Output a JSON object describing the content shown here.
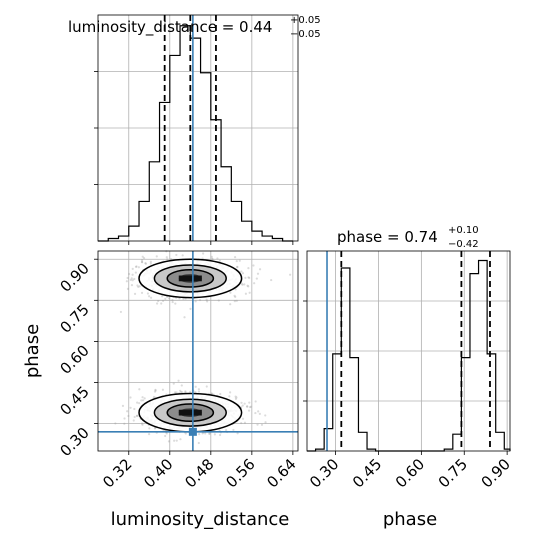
{
  "chart_data": [
    {
      "type": "histogram",
      "panel": "luminosity_distance marginal",
      "title_main": "luminosity_distance = 0.44",
      "title_sup": "+0.05",
      "title_sub": "−0.05",
      "xlim": [
        0.26,
        0.65
      ],
      "bins": [
        {
          "x0": 0.26,
          "x1": 0.28,
          "count": 0
        },
        {
          "x0": 0.28,
          "x1": 0.3,
          "count": 1
        },
        {
          "x0": 0.3,
          "x1": 0.32,
          "count": 2
        },
        {
          "x0": 0.32,
          "x1": 0.34,
          "count": 6
        },
        {
          "x0": 0.34,
          "x1": 0.36,
          "count": 16
        },
        {
          "x0": 0.36,
          "x1": 0.38,
          "count": 32
        },
        {
          "x0": 0.38,
          "x1": 0.4,
          "count": 56
        },
        {
          "x0": 0.4,
          "x1": 0.42,
          "count": 75
        },
        {
          "x0": 0.42,
          "x1": 0.44,
          "count": 87
        },
        {
          "x0": 0.44,
          "x1": 0.46,
          "count": 82
        },
        {
          "x0": 0.46,
          "x1": 0.48,
          "count": 68
        },
        {
          "x0": 0.48,
          "x1": 0.5,
          "count": 49
        },
        {
          "x0": 0.5,
          "x1": 0.52,
          "count": 30
        },
        {
          "x0": 0.52,
          "x1": 0.54,
          "count": 16
        },
        {
          "x0": 0.54,
          "x1": 0.56,
          "count": 8
        },
        {
          "x0": 0.56,
          "x1": 0.58,
          "count": 4
        },
        {
          "x0": 0.58,
          "x1": 0.6,
          "count": 2
        },
        {
          "x0": 0.6,
          "x1": 0.62,
          "count": 1
        },
        {
          "x0": 0.62,
          "x1": 0.64,
          "count": 0
        }
      ],
      "quantiles": [
        0.39,
        0.44,
        0.49
      ],
      "truth": 0.445
    },
    {
      "type": "histogram",
      "panel": "phase marginal",
      "title_main": "phase = 0.74",
      "title_sup": "+0.10",
      "title_sub": "−0.42",
      "xlim": [
        0.2,
        0.91
      ],
      "bins": [
        {
          "x0": 0.2,
          "x1": 0.23,
          "count": 0
        },
        {
          "x0": 0.23,
          "x1": 0.26,
          "count": 1
        },
        {
          "x0": 0.26,
          "x1": 0.29,
          "count": 12
        },
        {
          "x0": 0.29,
          "x1": 0.32,
          "count": 52
        },
        {
          "x0": 0.32,
          "x1": 0.35,
          "count": 98
        },
        {
          "x0": 0.35,
          "x1": 0.38,
          "count": 50
        },
        {
          "x0": 0.38,
          "x1": 0.41,
          "count": 10
        },
        {
          "x0": 0.41,
          "x1": 0.44,
          "count": 1
        },
        {
          "x0": 0.44,
          "x1": 0.47,
          "count": 0
        },
        {
          "x0": 0.47,
          "x1": 0.5,
          "count": 0
        },
        {
          "x0": 0.5,
          "x1": 0.53,
          "count": 0
        },
        {
          "x0": 0.53,
          "x1": 0.56,
          "count": 0
        },
        {
          "x0": 0.56,
          "x1": 0.59,
          "count": 0
        },
        {
          "x0": 0.59,
          "x1": 0.62,
          "count": 0
        },
        {
          "x0": 0.62,
          "x1": 0.65,
          "count": 0
        },
        {
          "x0": 0.65,
          "x1": 0.68,
          "count": 0
        },
        {
          "x0": 0.68,
          "x1": 0.71,
          "count": 1
        },
        {
          "x0": 0.71,
          "x1": 0.74,
          "count": 9
        },
        {
          "x0": 0.74,
          "x1": 0.77,
          "count": 50
        },
        {
          "x0": 0.77,
          "x1": 0.8,
          "count": 95
        },
        {
          "x0": 0.8,
          "x1": 0.83,
          "count": 102
        },
        {
          "x0": 0.83,
          "x1": 0.86,
          "count": 52
        },
        {
          "x0": 0.86,
          "x1": 0.89,
          "count": 10
        },
        {
          "x0": 0.89,
          "x1": 0.91,
          "count": 1
        }
      ],
      "quantiles": [
        0.32,
        0.74,
        0.84
      ],
      "truth": 0.27
    },
    {
      "type": "scatter",
      "panel": "luminosity_distance vs phase joint",
      "xlabel": "luminosity_distance",
      "ylabel": "phase",
      "xlim": [
        0.26,
        0.65
      ],
      "ylim": [
        0.2,
        0.93
      ],
      "xticks": [
        0.32,
        0.4,
        0.48,
        0.56,
        0.64
      ],
      "xtick_labels": [
        "0.32",
        "0.40",
        "0.48",
        "0.56",
        "0.64"
      ],
      "yticks": [
        0.3,
        0.45,
        0.6,
        0.75,
        0.9
      ],
      "ytick_labels": [
        "0.30",
        "0.45",
        "0.60",
        "0.75",
        "0.90"
      ],
      "clusters": [
        {
          "cx": 0.44,
          "cy": 0.83,
          "sx": 0.05,
          "sy": 0.035
        },
        {
          "cx": 0.44,
          "cy": 0.34,
          "sx": 0.05,
          "sy": 0.035
        }
      ],
      "truth": {
        "x": 0.445,
        "y": 0.27
      },
      "phase_xticks": [
        0.3,
        0.45,
        0.6,
        0.75,
        0.9
      ],
      "phase_xtick_labels": [
        "0.30",
        "0.45",
        "0.60",
        "0.75",
        "0.90"
      ],
      "phase_xlabel": "phase"
    }
  ]
}
